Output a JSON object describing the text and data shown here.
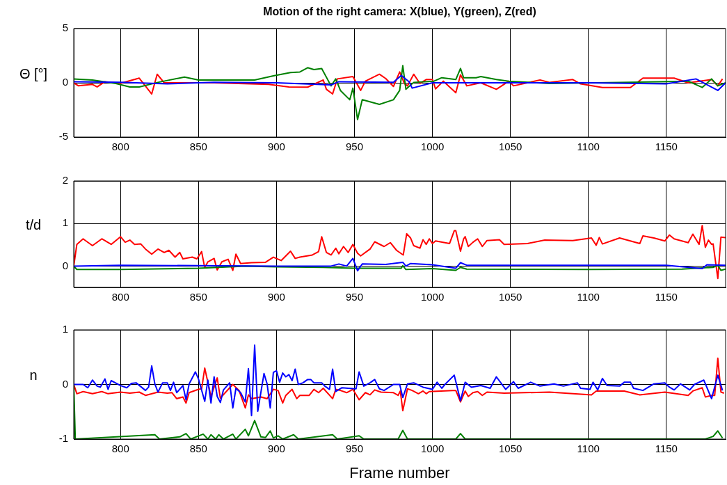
{
  "chart_data": [
    {
      "type": "line",
      "title": "Motion of the right camera: X(blue), Y(green), Z(red)",
      "ylabel": "Θ [°]",
      "xlim": [
        770,
        1188
      ],
      "xticks": [
        800,
        850,
        900,
        950,
        1000,
        1050,
        1100,
        1150
      ],
      "ylim": [
        -5,
        5
      ],
      "yticks": [
        -5,
        0,
        5
      ],
      "grid": true,
      "series": [
        {
          "color": "#0000ff",
          "x": [
            770,
            800,
            830,
            860,
            900,
            935,
            940,
            975,
            980,
            985,
            987,
            1000,
            1050,
            1100,
            1150,
            1169,
            1183,
            1188
          ],
          "values": [
            0.1,
            0.05,
            -0.1,
            0.05,
            0,
            -0.2,
            0.1,
            0.05,
            0.68,
            0.1,
            -0.49,
            0,
            0,
            0,
            -0.1,
            0.36,
            -0.7,
            0
          ]
        },
        {
          "color": "#008000",
          "x": [
            770,
            782,
            797,
            806,
            812,
            824,
            841,
            850,
            886,
            898,
            909,
            915,
            920,
            924,
            929,
            935,
            938,
            941,
            947,
            949,
            952,
            955,
            966,
            975,
            979,
            981,
            983,
            988,
            1001,
            1006,
            1015,
            1018,
            1020,
            1028,
            1031,
            1041,
            1049,
            1075,
            1120,
            1164,
            1173,
            1179,
            1183,
            1188
          ],
          "values": [
            0.36,
            0.26,
            -0.06,
            -0.38,
            -0.38,
            0.04,
            0.53,
            0.26,
            0.26,
            0.64,
            0.94,
            1.0,
            1.39,
            1.22,
            1.32,
            -0.28,
            0.36,
            -0.7,
            -1.56,
            -0.49,
            -3.38,
            -1.56,
            -1.99,
            -1.56,
            -0.7,
            1.58,
            -0.6,
            0.04,
            0.15,
            0.47,
            0.3,
            1.32,
            0.47,
            0.47,
            0.58,
            0.3,
            0.15,
            -0.06,
            0.04,
            0.15,
            -0.43,
            0.36,
            -0.28,
            0
          ]
        },
        {
          "color": "#ff0000",
          "x": [
            770,
            773,
            782,
            785,
            790,
            800,
            812,
            820,
            823.5,
            828,
            860,
            895,
            908,
            920,
            930,
            932,
            936,
            939,
            949,
            954,
            957,
            966,
            970,
            975,
            979,
            982,
            984,
            988,
            992,
            996,
            1000,
            1002,
            1007,
            1015,
            1018,
            1022,
            1031,
            1041,
            1049,
            1052,
            1069,
            1075,
            1090,
            1095,
            1109,
            1127,
            1135,
            1155,
            1164,
            1179,
            1183,
            1186
          ],
          "values": [
            0,
            -0.28,
            -0.15,
            -0.38,
            0.1,
            -0.05,
            0.43,
            -1.03,
            0.79,
            0,
            0,
            -0.15,
            -0.38,
            -0.4,
            0.26,
            -0.6,
            -1.03,
            0.36,
            0.58,
            -0.7,
            0.15,
            0.79,
            0.4,
            -0.34,
            1.0,
            -0.06,
            -0.28,
            0.79,
            -0.06,
            0.3,
            0.3,
            -0.56,
            0.15,
            -0.92,
            0.73,
            -0.28,
            0,
            -0.6,
            0.15,
            -0.28,
            0.26,
            0.04,
            0.3,
            -0.1,
            -0.43,
            -0.43,
            0.43,
            0.43,
            0,
            0.3,
            -0.28,
            0.36
          ]
        }
      ]
    },
    {
      "type": "line",
      "ylabel": "t/d",
      "xlim": [
        770,
        1188
      ],
      "xticks": [
        800,
        850,
        900,
        950,
        1000,
        1050,
        1100,
        1150
      ],
      "ylim": [
        -0.5,
        2
      ],
      "yticks": [
        0,
        1,
        2
      ],
      "grid": true,
      "series": [
        {
          "color": "#0000ff",
          "x": [
            770,
            800,
            850,
            900,
            935,
            940,
            945,
            949,
            952,
            955,
            970,
            981,
            983,
            986,
            1000,
            1015,
            1018,
            1022,
            1100,
            1150,
            1173,
            1176,
            1188
          ],
          "values": [
            0,
            0.02,
            0.01,
            0,
            0,
            0.05,
            0,
            0.18,
            -0.11,
            0.05,
            0.04,
            0.09,
            0,
            0.06,
            0.03,
            -0.05,
            0.08,
            0.02,
            0.02,
            0.02,
            -0.06,
            0.03,
            0.02
          ]
        },
        {
          "color": "#008000",
          "x": [
            770,
            772,
            800,
            850,
            880,
            900,
            930,
            950,
            980,
            981,
            983,
            1000,
            1015,
            1018,
            1022,
            1100,
            1160,
            1180,
            1183,
            1185,
            1188
          ],
          "values": [
            0,
            -0.08,
            -0.08,
            -0.05,
            0,
            -0.02,
            -0.03,
            -0.05,
            -0.05,
            0.01,
            -0.08,
            -0.06,
            -0.1,
            -0.03,
            -0.07,
            -0.08,
            -0.07,
            -0.03,
            0.02,
            -0.1,
            -0.07
          ]
        },
        {
          "color": "#ff0000",
          "x": [
            770,
            772,
            776,
            782,
            788,
            794,
            800,
            803,
            806,
            809,
            813,
            816,
            820,
            824,
            828,
            831,
            835,
            838,
            840,
            846,
            849,
            852,
            854,
            856,
            860,
            862,
            865,
            869,
            872,
            874,
            877,
            884,
            893,
            898,
            903,
            909,
            912,
            915,
            923,
            927,
            929,
            932,
            935,
            938,
            940,
            943,
            946,
            949,
            952,
            954,
            960,
            963,
            969,
            973,
            977,
            981.3,
            983.5,
            986,
            988,
            992,
            994,
            996,
            998,
            1000,
            1002,
            1011,
            1014,
            1015,
            1018,
            1020,
            1021,
            1023,
            1026,
            1029,
            1032,
            1035,
            1043,
            1046,
            1061,
            1072,
            1090,
            1102,
            1105,
            1107,
            1109,
            1120,
            1133,
            1135,
            1142,
            1149,
            1152,
            1155,
            1164,
            1167,
            1171,
            1173,
            1175,
            1177,
            1179,
            1180,
            1183,
            1185,
            1188
          ],
          "values": [
            0,
            0.51,
            0.64,
            0.48,
            0.64,
            0.51,
            0.69,
            0.56,
            0.61,
            0.51,
            0.52,
            0.4,
            0.28,
            0.4,
            0.32,
            0.37,
            0.21,
            0.32,
            0.17,
            0.21,
            0.17,
            0.34,
            -0.04,
            0.1,
            0.18,
            -0.09,
            0.1,
            0.16,
            -0.1,
            0.28,
            0.06,
            0.08,
            0.09,
            0.21,
            0.13,
            0.35,
            0.18,
            0.21,
            0.26,
            0.34,
            0.69,
            0.32,
            0.26,
            0.42,
            0.29,
            0.46,
            0.32,
            0.51,
            0.3,
            0.24,
            0.4,
            0.57,
            0.46,
            0.55,
            0.37,
            0.26,
            0.76,
            0.66,
            0.48,
            0.42,
            0.62,
            0.51,
            0.64,
            0.53,
            0.59,
            0.53,
            0.83,
            0.83,
            0.35,
            0.64,
            0.69,
            0.46,
            0.56,
            0.64,
            0.46,
            0.6,
            0.62,
            0.51,
            0.53,
            0.61,
            0.6,
            0.66,
            0.49,
            0.67,
            0.52,
            0.66,
            0.53,
            0.71,
            0.66,
            0.59,
            0.73,
            0.64,
            0.55,
            0.75,
            0.51,
            0.95,
            0.44,
            0.61,
            0.51,
            0.52,
            -0.29,
            0.68,
            0.67
          ]
        }
      ]
    },
    {
      "type": "line",
      "ylabel": "n",
      "xlabel": "Frame number",
      "xlim": [
        770,
        1188
      ],
      "xticks": [
        800,
        850,
        900,
        950,
        1000,
        1050,
        1100,
        1150
      ],
      "ylim": [
        -1,
        1
      ],
      "yticks": [
        -1,
        0,
        1
      ],
      "grid": true,
      "series": [
        {
          "color": "#0000ff",
          "x": [
            770,
            776,
            779,
            782,
            785,
            787,
            790,
            792,
            794,
            800,
            804,
            807,
            810,
            816,
            818,
            820,
            822,
            824,
            827,
            830,
            832,
            834,
            836,
            840,
            842,
            844,
            848,
            850,
            854,
            856,
            858,
            860,
            862,
            864,
            866,
            870,
            872,
            874,
            877,
            880,
            882,
            884,
            886,
            888,
            892,
            894,
            896,
            898,
            900,
            902,
            904,
            906,
            908,
            910,
            912,
            914,
            917,
            920,
            922,
            924,
            929,
            931,
            934,
            936,
            938,
            942,
            951,
            953,
            956,
            960,
            963,
            966,
            969,
            975,
            979,
            981,
            984,
            988,
            994,
            1000,
            1003,
            1006,
            1008,
            1014,
            1018,
            1021,
            1025,
            1031,
            1037,
            1041,
            1047,
            1052,
            1055,
            1063,
            1069,
            1078,
            1084,
            1093,
            1095,
            1101,
            1103,
            1106,
            1109,
            1112,
            1120,
            1123,
            1127,
            1129,
            1135,
            1142,
            1149,
            1152,
            1155,
            1159,
            1165,
            1168,
            1174,
            1179,
            1183,
            1186
          ],
          "values": [
            0,
            0,
            -0.06,
            0.08,
            -0.03,
            -0.05,
            0.1,
            -0.09,
            0.07,
            -0.02,
            -0.06,
            0.02,
            0.03,
            -0.11,
            -0.05,
            0.34,
            0.01,
            -0.14,
            0.03,
            0.03,
            -0.11,
            0.04,
            -0.15,
            -0.02,
            -0.28,
            0.01,
            0.23,
            0.1,
            -0.31,
            0.08,
            -0.34,
            0.14,
            -0.22,
            -0.33,
            -0.1,
            0.03,
            -0.43,
            -0.07,
            -0.15,
            -0.32,
            0.29,
            -0.57,
            0.72,
            -0.49,
            0.2,
            0.01,
            -0.43,
            0.22,
            0.25,
            0.04,
            0.21,
            0.14,
            0.18,
            0.07,
            0.28,
            0,
            0.03,
            0.09,
            0.09,
            0.03,
            0.03,
            -0.03,
            -0.09,
            0.28,
            -0.13,
            -0.06,
            -0.08,
            0.23,
            -0.03,
            0.03,
            0.09,
            -0.08,
            -0.11,
            0,
            0,
            -0.24,
            0.01,
            0.03,
            -0.05,
            -0.09,
            0.04,
            -0.07,
            0,
            0.17,
            -0.3,
            0.04,
            -0.05,
            -0.02,
            -0.07,
            0.14,
            -0.09,
            0.05,
            -0.07,
            0.04,
            -0.03,
            0.01,
            -0.03,
            0.03,
            -0.07,
            -0.09,
            0.04,
            -0.1,
            0.11,
            -0.02,
            -0.03,
            0.04,
            0.04,
            -0.07,
            -0.11,
            0.01,
            0.03,
            -0.05,
            -0.1,
            0.01,
            -0.1,
            0,
            0.08,
            -0.26,
            0.17,
            -0.11
          ]
        },
        {
          "color": "#008000",
          "x": [
            770,
            771,
            822,
            825,
            838,
            842,
            845,
            853,
            856,
            858,
            861,
            863,
            866,
            872,
            874,
            880,
            882,
            886,
            890,
            893,
            896,
            898,
            901,
            904,
            911,
            914,
            936,
            939,
            953,
            956,
            978,
            981,
            984,
            1015,
            1018,
            1021,
            1175,
            1180,
            1183,
            1186
          ],
          "values": [
            0,
            -1,
            -0.92,
            -1,
            -0.96,
            -0.9,
            -1,
            -0.91,
            -1,
            -0.92,
            -1,
            -0.92,
            -1,
            -0.91,
            -1,
            -0.82,
            -0.94,
            -0.66,
            -0.96,
            -0.97,
            -0.85,
            -0.98,
            -0.94,
            -1,
            -0.92,
            -1,
            -0.92,
            -1,
            -0.94,
            -1,
            -1,
            -0.84,
            -1,
            -1,
            -0.9,
            -1,
            -1,
            -0.95,
            -0.85,
            -0.98
          ]
        },
        {
          "color": "#ff0000",
          "x": [
            770,
            772,
            776,
            782,
            788,
            792,
            800,
            806,
            812,
            816,
            824,
            830,
            833,
            836,
            840,
            842,
            844,
            850,
            852,
            854,
            858,
            862,
            864,
            870,
            872,
            876,
            880,
            882,
            884,
            890,
            894,
            898,
            901,
            904,
            906,
            910,
            913,
            915,
            921,
            924,
            927,
            930,
            936,
            938,
            941,
            945,
            949,
            953,
            957,
            960,
            963,
            967,
            975,
            978,
            979.4,
            981,
            984,
            987,
            991,
            994,
            996,
            998,
            1013,
            1015,
            1018,
            1021,
            1023,
            1026,
            1029,
            1032,
            1035,
            1046,
            1075,
            1102,
            1105,
            1123,
            1133,
            1149,
            1164,
            1167,
            1173,
            1175,
            1179,
            1181,
            1183,
            1185,
            1187
          ],
          "values": [
            0,
            -0.17,
            -0.13,
            -0.17,
            -0.13,
            -0.17,
            -0.14,
            -0.16,
            -0.14,
            -0.2,
            -0.14,
            -0.16,
            -0.15,
            -0.26,
            -0.23,
            -0.34,
            -0.15,
            -0.09,
            -0.08,
            0.3,
            -0.22,
            0.12,
            -0.25,
            -0.06,
            0,
            -0.11,
            -0.43,
            -0.19,
            -0.26,
            -0.23,
            -0.26,
            -0.09,
            -0.11,
            -0.34,
            -0.2,
            -0.09,
            -0.26,
            -0.2,
            -0.2,
            -0.09,
            -0.15,
            -0.07,
            -0.26,
            -0.09,
            -0.11,
            -0.15,
            -0.09,
            -0.28,
            -0.15,
            -0.19,
            -0.1,
            -0.14,
            -0.15,
            -0.2,
            -0.12,
            -0.48,
            -0.08,
            -0.11,
            -0.17,
            -0.12,
            -0.17,
            -0.13,
            -0.11,
            -0.11,
            -0.32,
            -0.12,
            -0.22,
            -0.15,
            -0.13,
            -0.2,
            -0.14,
            -0.16,
            -0.14,
            -0.19,
            -0.12,
            -0.12,
            -0.19,
            -0.14,
            -0.2,
            -0.12,
            -0.06,
            -0.23,
            -0.2,
            -0.2,
            0.48,
            -0.14,
            -0.16
          ]
        }
      ]
    }
  ]
}
